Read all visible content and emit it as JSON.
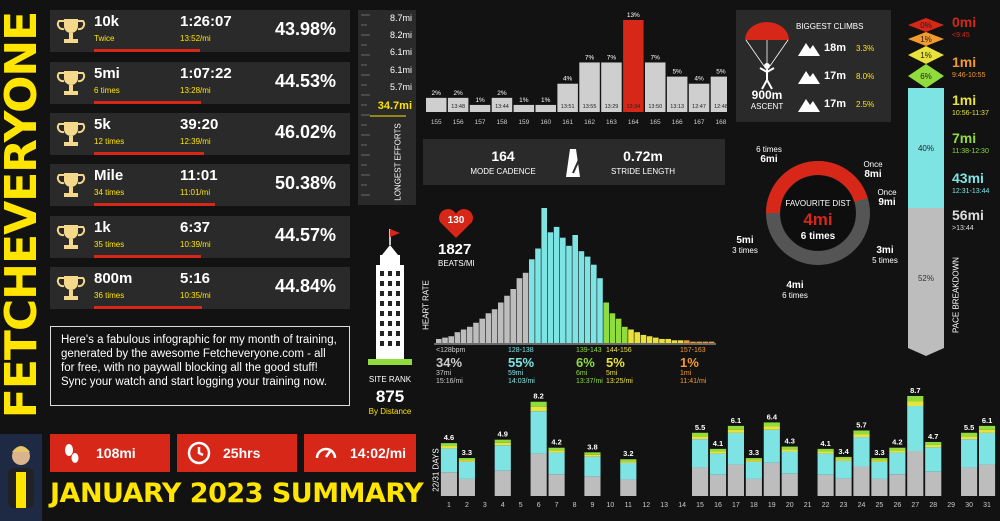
{
  "brand": {
    "name": "FETCHEVERYONE"
  },
  "summary_title": "JANUARY 2023 SUMMARY",
  "colors": {
    "red": "#d62718",
    "yellow": "#ffe500",
    "cyan": "#7ee3e3",
    "green": "#8fdc3c",
    "panel": "#2a2a2a"
  },
  "pbs": [
    {
      "name": "10k",
      "sub": "Twice",
      "time": "1:26:07",
      "date": "13:52/mi",
      "pct": "43.98%",
      "fraction": 0.4398
    },
    {
      "name": "5mi",
      "sub": "6 times",
      "time": "1:07:22",
      "date": "13:28/mi",
      "pct": "44.53%",
      "fraction": 0.4453
    },
    {
      "name": "5k",
      "sub": "12 times",
      "time": "39:20",
      "date": "12:39/mi",
      "pct": "46.02%",
      "fraction": 0.4602
    },
    {
      "name": "Mile",
      "sub": "34 times",
      "time": "11:01",
      "date": "11:01/mi",
      "pct": "50.38%",
      "fraction": 0.5038
    },
    {
      "name": "1k",
      "sub": "35 times",
      "time": "6:37",
      "date": "10:39/mi",
      "pct": "44.57%",
      "fraction": 0.4457
    },
    {
      "name": "800m",
      "sub": "36 times",
      "time": "5:16",
      "date": "10:35/mi",
      "pct": "44.84%",
      "fraction": 0.4484
    }
  ],
  "note": "Here's a fabulous infographic for my month of training, generated by the awesome Fetcheveryone.com - all for free, with no paywall blocking all the good stuff! Sync your watch and start logging your training now.",
  "stats": {
    "distance": "108mi",
    "duration": "25hrs",
    "pace": "14:02/mi"
  },
  "site_rank": {
    "label": "SITE RANK",
    "value": "875",
    "sub": "By Distance"
  },
  "longest_efforts": {
    "label": "LONGEST EFFORTS",
    "values": [
      "8.7mi",
      "8.2mi",
      "6.1mi",
      "6.1mi",
      "5.7mi",
      "34.7mi"
    ],
    "highlight": "34.7mi"
  },
  "cadence_chart": {
    "categories": [
      "155",
      "156",
      "157",
      "158",
      "159",
      "160",
      "161",
      "162",
      "163",
      "164",
      "165",
      "166",
      "167",
      "168"
    ],
    "pcts": [
      "2%",
      "2%",
      "1%",
      "2%",
      "1%",
      "1%",
      "4%",
      "7%",
      "7%",
      "13%",
      "7%",
      "5%",
      "4%",
      "5%"
    ],
    "values": [
      2,
      2,
      1,
      2,
      1,
      1,
      4,
      7,
      7,
      13,
      7,
      5,
      4,
      5
    ],
    "paces": [
      "",
      "13:48",
      "",
      "13:44",
      "",
      "",
      "13:51",
      "13:55",
      "13:29",
      "13:34",
      "13:50",
      "13:13",
      "12:47",
      "12:48"
    ],
    "highlight_index": 9
  },
  "cadence": {
    "value": "164",
    "label": "MODE CADENCE",
    "stride": "0.72m",
    "stride_label": "STRIDE LENGTH"
  },
  "climbs": {
    "title": "BIGGEST CLIMBS",
    "ascent": "900m",
    "ascent_label": "ASCENT",
    "items": [
      {
        "dist": "18m",
        "pct": "3.3%"
      },
      {
        "dist": "17m",
        "pct": "8.0%"
      },
      {
        "dist": "17m",
        "pct": "2.5%"
      }
    ]
  },
  "favourite": {
    "title": "FAVOURITE DIST",
    "dist": "4mi",
    "times": "6 times",
    "labels": [
      {
        "top": "6 times",
        "main": "6mi"
      },
      {
        "top": "Once",
        "main": "8mi"
      },
      {
        "top": "Once",
        "main": "9mi"
      },
      {
        "main": "3mi",
        "bottom": "5 times"
      },
      {
        "main": "4mi",
        "bottom": "6 times"
      },
      {
        "main": "5mi",
        "bottom": "3 times"
      }
    ]
  },
  "pace_breakdown": {
    "label": "PACE BREAKDOWN",
    "segments": [
      {
        "pct": "0%",
        "value": 0,
        "color": "#d62718"
      },
      {
        "pct": "1%",
        "value": 1,
        "color": "#f39a2e"
      },
      {
        "pct": "1%",
        "value": 1,
        "color": "#e9e23a"
      },
      {
        "pct": "6%",
        "value": 6,
        "color": "#8fdc3c"
      },
      {
        "pct": "40%",
        "value": 40,
        "color": "#7ee3e3"
      },
      {
        "pct": "52%",
        "value": 52,
        "color": "#bdbdbd"
      }
    ],
    "rows": [
      {
        "dist": "0mi",
        "range": "<9:45",
        "color": "#d62718"
      },
      {
        "dist": "1mi",
        "range": "9:46-10:55",
        "color": "#f39a2e"
      },
      {
        "dist": "1mi",
        "range": "10:56-11:37",
        "color": "#e9e23a"
      },
      {
        "dist": "7mi",
        "range": "11:38-12:30",
        "color": "#8fdc3c"
      },
      {
        "dist": "43mi",
        "range": "12:31-13:44",
        "color": "#7ee3e3"
      },
      {
        "dist": "56mi",
        "range": ">13:44",
        "color": "#dddddd"
      }
    ]
  },
  "heart_rate": {
    "label": "HEART RATE",
    "bpm": "130",
    "beats_per_mile": "1827",
    "beats_label": "BEATS/MI",
    "bars": [
      {
        "v": 3,
        "c": "g"
      },
      {
        "v": 4,
        "c": "g"
      },
      {
        "v": 5,
        "c": "g"
      },
      {
        "v": 8,
        "c": "g"
      },
      {
        "v": 10,
        "c": "g"
      },
      {
        "v": 12,
        "c": "g"
      },
      {
        "v": 15,
        "c": "g"
      },
      {
        "v": 18,
        "c": "g"
      },
      {
        "v": 22,
        "c": "g"
      },
      {
        "v": 25,
        "c": "g"
      },
      {
        "v": 30,
        "c": "g"
      },
      {
        "v": 35,
        "c": "g"
      },
      {
        "v": 40,
        "c": "g"
      },
      {
        "v": 48,
        "c": "g"
      },
      {
        "v": 52,
        "c": "g"
      },
      {
        "v": 62,
        "c": "c"
      },
      {
        "v": 70,
        "c": "c"
      },
      {
        "v": 100,
        "c": "c"
      },
      {
        "v": 82,
        "c": "c"
      },
      {
        "v": 86,
        "c": "c"
      },
      {
        "v": 78,
        "c": "c"
      },
      {
        "v": 72,
        "c": "c"
      },
      {
        "v": 80,
        "c": "c"
      },
      {
        "v": 68,
        "c": "c"
      },
      {
        "v": 64,
        "c": "c"
      },
      {
        "v": 58,
        "c": "c"
      },
      {
        "v": 48,
        "c": "c"
      },
      {
        "v": 30,
        "c": "l"
      },
      {
        "v": 22,
        "c": "l"
      },
      {
        "v": 18,
        "c": "l"
      },
      {
        "v": 12,
        "c": "l"
      },
      {
        "v": 10,
        "c": "y"
      },
      {
        "v": 8,
        "c": "y"
      },
      {
        "v": 6,
        "c": "y"
      },
      {
        "v": 5,
        "c": "y"
      },
      {
        "v": 4,
        "c": "y"
      },
      {
        "v": 3,
        "c": "y"
      },
      {
        "v": 3,
        "c": "y"
      },
      {
        "v": 2,
        "c": "y"
      },
      {
        "v": 2,
        "c": "y"
      },
      {
        "v": 2,
        "c": "o"
      },
      {
        "v": 1,
        "c": "o"
      },
      {
        "v": 1,
        "c": "o"
      },
      {
        "v": 1,
        "c": "o"
      },
      {
        "v": 1,
        "c": "o"
      }
    ],
    "zones": [
      {
        "range": "<128bpm",
        "pct": "34%",
        "dist": "37mi",
        "pace": "15:16/mi",
        "color": "#cccccc"
      },
      {
        "range": "128-138",
        "pct": "55%",
        "dist": "59mi",
        "pace": "14:03/mi",
        "color": "#7ee3e3"
      },
      {
        "range": "139-143",
        "pct": "6%",
        "dist": "6mi",
        "pace": "13:37/mi",
        "color": "#8fdc3c"
      },
      {
        "range": "144-156",
        "pct": "5%",
        "dist": "5mi",
        "pace": "13:25/mi",
        "color": "#e9e23a"
      },
      {
        "range": "157-163",
        "pct": "1%",
        "dist": "1mi",
        "pace": "11:41/mi",
        "color": "#f39a2e"
      }
    ]
  },
  "chart_data": {
    "type": "bar",
    "ylabel": "22/31 DAYS",
    "categories": [
      "1",
      "2",
      "3",
      "4",
      "5",
      "6",
      "7",
      "8",
      "9",
      "10",
      "11",
      "12",
      "13",
      "14",
      "15",
      "16",
      "17",
      "18",
      "19",
      "20",
      "21",
      "22",
      "23",
      "24",
      "25",
      "26",
      "27",
      "28",
      "29",
      "30",
      "31"
    ],
    "values": [
      4.6,
      3.3,
      0,
      4.9,
      0,
      8.2,
      4.2,
      0,
      3.8,
      0,
      3.2,
      0,
      0,
      0,
      5.5,
      4.1,
      6.1,
      3.3,
      6.4,
      4.3,
      0,
      4.1,
      3.4,
      5.7,
      3.3,
      4.2,
      8.7,
      4.7,
      0,
      5.5,
      6.1
    ],
    "labels": [
      "4.6",
      "3.3",
      "",
      "4.9",
      "",
      "8.2",
      "4.2",
      "",
      "3.8",
      "",
      "3.2",
      "",
      "",
      "",
      "5.5",
      "4.1",
      "6.1",
      "3.3",
      "6.4",
      "4.3",
      "",
      "4.1",
      "3.4",
      "5.7",
      "3.3",
      "4.2",
      "8.7",
      "4.7",
      "",
      "5.5",
      "6.1"
    ]
  }
}
